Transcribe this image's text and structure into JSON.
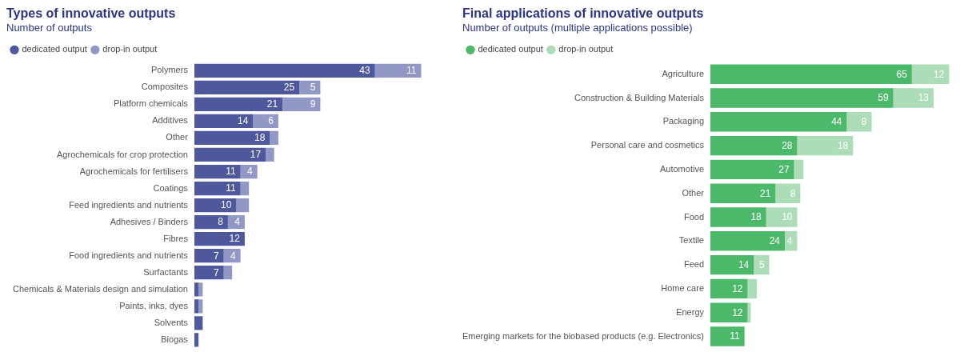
{
  "chart_data": [
    {
      "type": "bar",
      "orientation": "horizontal",
      "stacked": true,
      "title": "Types of innovative outputs",
      "subtitle": "Number of outputs",
      "legend": "top left",
      "grid": false,
      "categories": [
        "Polymers",
        "Composites",
        "Platform chemicals",
        "Additives",
        "Other",
        "Agrochemicals for crop protection",
        "Agrochemicals for fertilisers",
        "Coatings",
        "Feed ingredients and nutrients",
        "Adhesives / Binders",
        "Fibres",
        "Food ingredients and nutrients",
        "Surfactants",
        "Chemicals & Materials design and simulation",
        "Paints, inks, dyes",
        "Solvents",
        "Biogas"
      ],
      "series": [
        {
          "name": "dedicated output",
          "color": "#4f589c",
          "values": [
            43,
            25,
            21,
            14,
            18,
            17,
            11,
            11,
            10,
            8,
            12,
            7,
            7,
            1,
            1,
            2,
            1
          ],
          "value_labels": [
            "43",
            "25",
            "21",
            "14",
            "18",
            "17",
            "11",
            "11",
            "10",
            "8",
            "12",
            "7",
            "7",
            null,
            null,
            null,
            null
          ]
        },
        {
          "name": "drop-in output",
          "color": "#9298c6",
          "values": [
            11,
            5,
            9,
            6,
            2,
            2,
            4,
            2,
            3,
            4,
            null,
            4,
            2,
            1,
            1,
            null,
            null
          ],
          "value_labels": [
            "11",
            "5",
            "9",
            "6",
            null,
            null,
            "4",
            null,
            null,
            "4",
            null,
            "4",
            null,
            null,
            null,
            null,
            null
          ]
        }
      ]
    },
    {
      "type": "bar",
      "orientation": "horizontal",
      "stacked": true,
      "title": "Final applications of innovative outputs",
      "subtitle": "Number of outputs (multiple applications possible)",
      "legend": "top left",
      "grid": false,
      "categories": [
        "Agriculture",
        "Construction & Building Materials",
        "Packaging",
        "Personal care and cosmetics",
        "Automotive",
        "Other",
        "Food",
        "Textile",
        "Feed",
        "Home care",
        "Energy",
        "Emerging markets for the biobased products (e.g. Electronics)"
      ],
      "series": [
        {
          "name": "dedicated output",
          "color": "#4cb96a",
          "values": [
            65,
            59,
            44,
            28,
            27,
            21,
            18,
            24,
            14,
            12,
            12,
            11
          ],
          "value_labels": [
            "65",
            "59",
            "44",
            "28",
            "27",
            "21",
            "18",
            "24",
            "14",
            "12",
            "12",
            "11"
          ]
        },
        {
          "name": "drop-in output",
          "color": "#acdcb8",
          "values": [
            12,
            13,
            8,
            18,
            3,
            8,
            10,
            4,
            5,
            3,
            1,
            null
          ],
          "value_labels": [
            "12",
            "13",
            "8",
            "18",
            null,
            "8",
            "10",
            "4",
            "5",
            null,
            null,
            null
          ]
        }
      ]
    }
  ]
}
